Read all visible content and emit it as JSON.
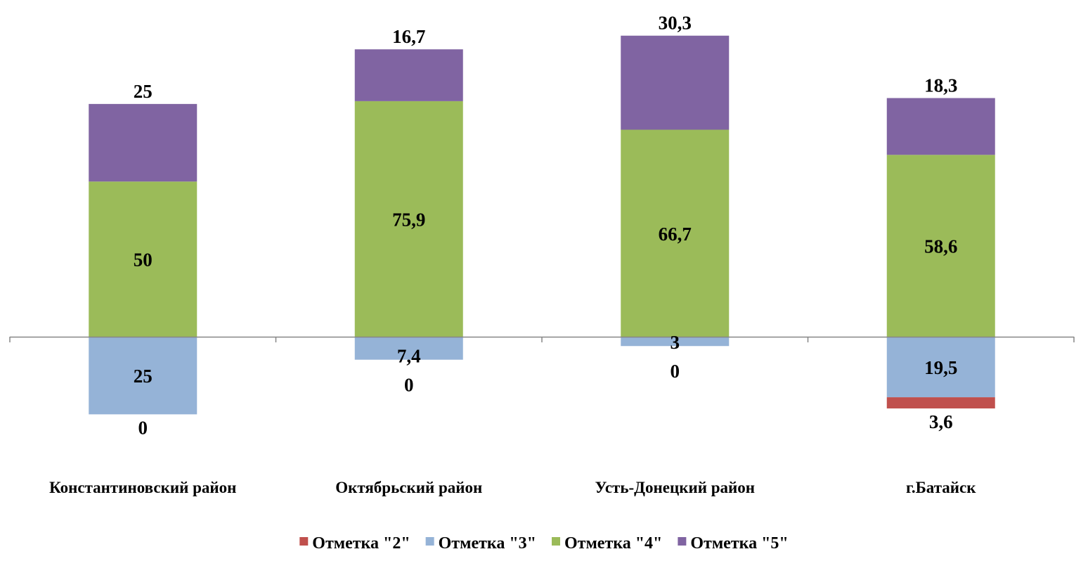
{
  "chart_data": {
    "type": "bar",
    "stacked": true,
    "diverging": true,
    "title": "",
    "xlabel": "",
    "ylabel": "",
    "categories": [
      "Константиновский район",
      "Октябрьский район",
      "Усть-Донецкий район",
      "г.Батайск"
    ],
    "series": [
      {
        "name": "Отметка \"2\"",
        "color": "#C0504D",
        "direction": "down",
        "values": [
          0,
          0,
          0,
          3.6
        ],
        "labels": [
          "0",
          "0",
          "0",
          "3,6"
        ]
      },
      {
        "name": "Отметка \"3\"",
        "color": "#95B3D7",
        "direction": "down",
        "values": [
          25,
          7.4,
          3,
          19.5
        ],
        "labels": [
          "25",
          "7,4",
          "3",
          "19,5"
        ]
      },
      {
        "name": "Отметка \"4\"",
        "color": "#9BBB59",
        "direction": "up",
        "values": [
          50,
          75.9,
          66.7,
          58.6
        ],
        "labels": [
          "50",
          "75,9",
          "66,7",
          "58,6"
        ]
      },
      {
        "name": "Отметка \"5\"",
        "color": "#8064A2",
        "direction": "up",
        "values": [
          25,
          16.7,
          30.3,
          18.3
        ],
        "labels": [
          "25",
          "16,7",
          "30,3",
          "18,3"
        ]
      }
    ],
    "ylim": [
      -45,
      106
    ],
    "grid": false,
    "legend_position": "bottom",
    "axis_color": "#868686"
  }
}
